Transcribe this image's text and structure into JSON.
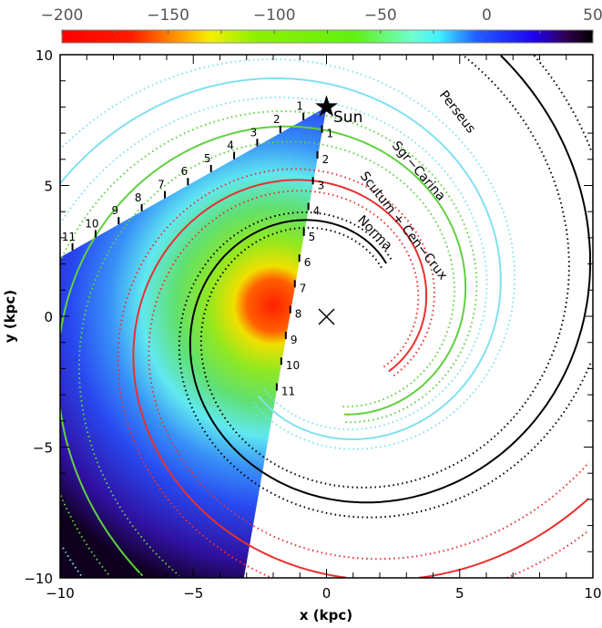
{
  "chart_data": {
    "type": "heatmap",
    "xlabel": "x (kpc)",
    "ylabel": "y (kpc)",
    "xlim": [
      -10,
      10
    ],
    "ylim": [
      -10,
      10
    ],
    "xticks": [
      "-10",
      "-5",
      "0",
      "5",
      "10"
    ],
    "yticks": [
      "-10",
      "-5",
      "0",
      "5",
      "10"
    ],
    "colorbar": {
      "range": [
        -200,
        50
      ],
      "ticks": [
        "−200",
        "−150",
        "−100",
        "−50",
        "0",
        "50"
      ],
      "colors": [
        "#ff0000",
        "#ff2a00",
        "#ffa000",
        "#f0f000",
        "#80f000",
        "#60f020",
        "#60ffe0",
        "#40f0ff",
        "#2040ff",
        "#2000ff",
        "#300060",
        "#000000"
      ]
    },
    "sun": {
      "label": "Sun",
      "x": 0,
      "y": 8
    },
    "galactic_center": {
      "x": 0,
      "y": 0
    },
    "wedge": {
      "apex": [
        0,
        8
      ],
      "left_edge_end": [
        -10,
        2.25
      ],
      "right_edge_end": [
        -3.1,
        -10
      ]
    },
    "distance_labels_left": [
      "1",
      "2",
      "3",
      "4",
      "5",
      "6",
      "7",
      "8",
      "9",
      "10",
      "11"
    ],
    "distance_labels_right": [
      "1",
      "2",
      "3",
      "4",
      "5",
      "6",
      "7",
      "8",
      "9",
      "10",
      "11"
    ],
    "heat_peak": {
      "x": -2.0,
      "y": 0.3,
      "value": -200
    },
    "arms": [
      {
        "name": "Norma",
        "color": "#000000",
        "r_at_90deg": 3.6,
        "start_deg": 42
      },
      {
        "name": "Scutum + Cen−Crux",
        "color": "#e83030",
        "r_at_90deg": 5.1,
        "start_deg": -42
      },
      {
        "name": "Sgr−Carina",
        "color": "#60d040",
        "r_at_90deg": 7.1,
        "start_deg": -80
      },
      {
        "name": "Perseus",
        "color": "#80e0f0",
        "r_at_90deg": 8.9,
        "start_deg": -130
      }
    ],
    "pitch_k": 0.21
  }
}
